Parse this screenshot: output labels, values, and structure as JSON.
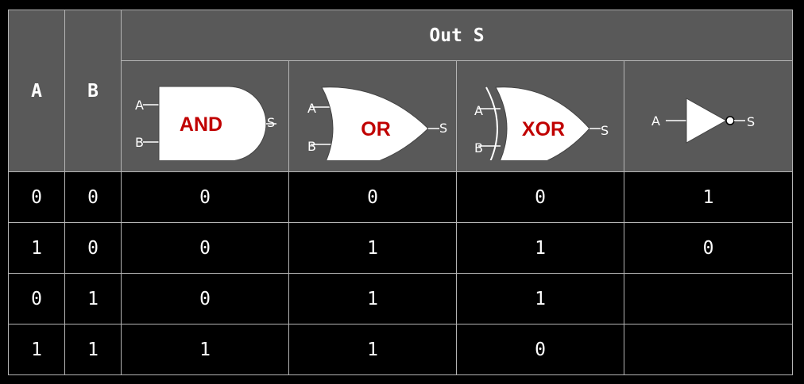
{
  "header": {
    "col_a": "A",
    "col_b": "B",
    "out": "Out S"
  },
  "gates": [
    {
      "name": "AND",
      "pin_a": "A",
      "pin_b": "B",
      "pin_s": "S"
    },
    {
      "name": "OR",
      "pin_a": "A",
      "pin_b": "B",
      "pin_s": "S"
    },
    {
      "name": "XOR",
      "pin_a": "A",
      "pin_b": "B",
      "pin_s": "S"
    },
    {
      "name": "",
      "pin_a": "A",
      "pin_s": "S"
    }
  ],
  "rows": [
    {
      "a": "0",
      "b": "0",
      "and": "0",
      "or": "0",
      "xor": "0",
      "not": "1"
    },
    {
      "a": "1",
      "b": "0",
      "and": "0",
      "or": "1",
      "xor": "1",
      "not": "0"
    },
    {
      "a": "0",
      "b": "1",
      "and": "0",
      "or": "1",
      "xor": "1",
      "not": ""
    },
    {
      "a": "1",
      "b": "1",
      "and": "1",
      "or": "1",
      "xor": "0",
      "not": ""
    }
  ],
  "colors": {
    "header_bg": "#595959",
    "gate_label": "#c00000",
    "grid": "#b5b5b5"
  }
}
